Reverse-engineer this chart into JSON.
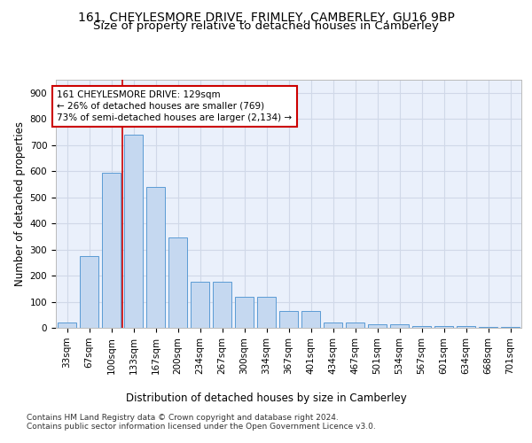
{
  "title_line1": "161, CHEYLESMORE DRIVE, FRIMLEY, CAMBERLEY, GU16 9BP",
  "title_line2": "Size of property relative to detached houses in Camberley",
  "xlabel": "Distribution of detached houses by size in Camberley",
  "ylabel": "Number of detached properties",
  "categories": [
    "33sqm",
    "67sqm",
    "100sqm",
    "133sqm",
    "167sqm",
    "200sqm",
    "234sqm",
    "267sqm",
    "300sqm",
    "334sqm",
    "367sqm",
    "401sqm",
    "434sqm",
    "467sqm",
    "501sqm",
    "534sqm",
    "567sqm",
    "601sqm",
    "634sqm",
    "668sqm",
    "701sqm"
  ],
  "values": [
    20,
    275,
    595,
    740,
    540,
    345,
    178,
    178,
    118,
    118,
    65,
    65,
    22,
    22,
    12,
    12,
    8,
    8,
    8,
    5,
    5
  ],
  "bar_color": "#c5d8f0",
  "bar_edge_color": "#5b9bd5",
  "grid_color": "#d0d8e8",
  "annotation_line1": "161 CHEYLESMORE DRIVE: 129sqm",
  "annotation_line2": "← 26% of detached houses are smaller (769)",
  "annotation_line3": "73% of semi-detached houses are larger (2,134) →",
  "annotation_box_color": "#ffffff",
  "annotation_border_color": "#cc0000",
  "vline_pos": 2.5,
  "vline_color": "#cc0000",
  "ylim": [
    0,
    950
  ],
  "yticks": [
    0,
    100,
    200,
    300,
    400,
    500,
    600,
    700,
    800,
    900
  ],
  "footnote1": "Contains HM Land Registry data © Crown copyright and database right 2024.",
  "footnote2": "Contains public sector information licensed under the Open Government Licence v3.0.",
  "fig_bg": "#ffffff",
  "axes_bg": "#eaf0fb",
  "title_fontsize": 10,
  "subtitle_fontsize": 9.5,
  "axis_label_fontsize": 8.5,
  "tick_fontsize": 7.5,
  "annotation_fontsize": 7.5,
  "footnote_fontsize": 6.5
}
